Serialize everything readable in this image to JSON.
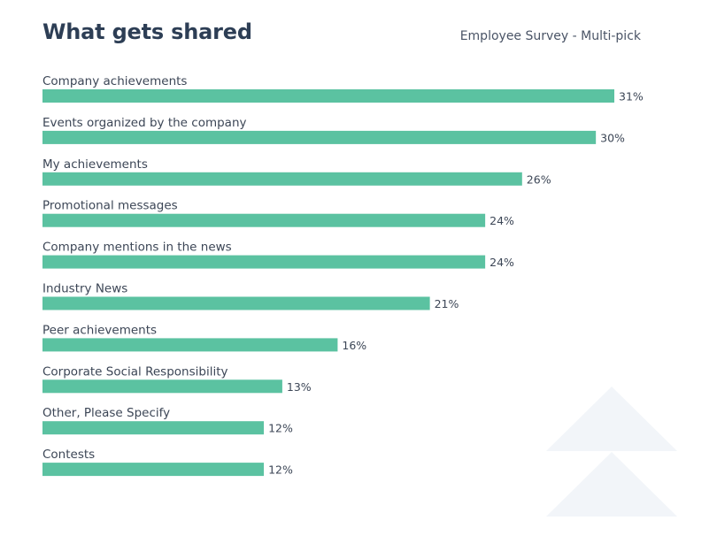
{
  "header": {
    "title": "What gets shared",
    "subtitle": "Employee Survey - Multi-pick"
  },
  "colors": {
    "bar": "#5bc2a1",
    "title": "#2d3e55",
    "text": "#3c4656",
    "decoration": "#f2f5f9"
  },
  "chart_data": {
    "type": "bar",
    "orientation": "horizontal",
    "title": "What gets shared",
    "subtitle": "Employee Survey - Multi-pick",
    "categories": [
      "Company achievements",
      "Events organized by the company",
      "My achievements",
      "Promotional messages",
      "Company mentions in the news",
      "Industry News",
      "Peer achievements",
      "Corporate Social Responsibility",
      "Other, Please Specify",
      "Contests"
    ],
    "values": [
      31,
      30,
      26,
      24,
      24,
      21,
      16,
      13,
      12,
      12
    ],
    "value_labels": [
      "31%",
      "30%",
      "26%",
      "24%",
      "24%",
      "21%",
      "16%",
      "13%",
      "12%",
      "12%"
    ],
    "unit": "%",
    "xlim": [
      0,
      31
    ],
    "grid": false,
    "legend": "none"
  }
}
